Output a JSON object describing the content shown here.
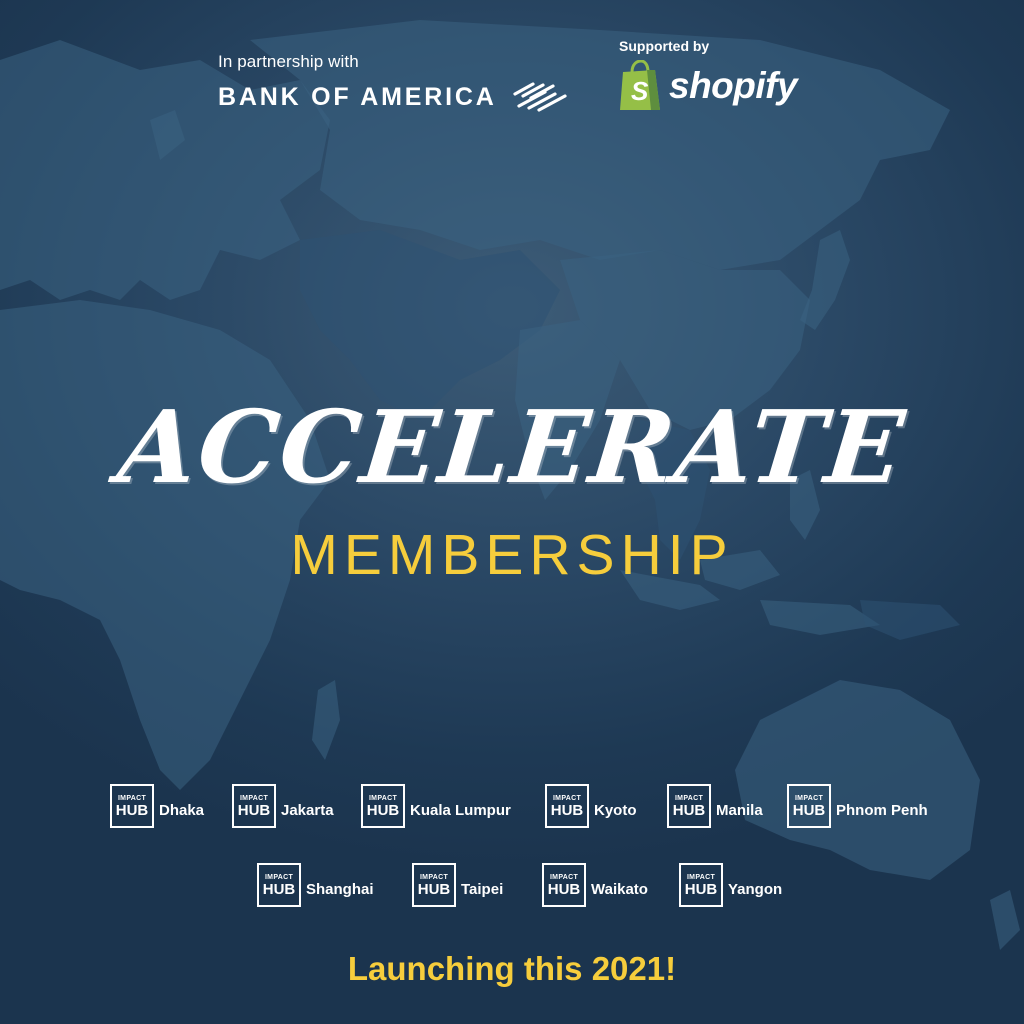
{
  "partner": {
    "caption": "In partnership with",
    "name": "BANK OF AMERICA"
  },
  "sponsor": {
    "caption": "Supported by",
    "name": "shopify"
  },
  "headline": "ACCELERATE",
  "subheadline": "MEMBERSHIP",
  "hub_logo": {
    "top": "IMPACT",
    "bottom": "HUB"
  },
  "hubs_row1": [
    "Dhaka",
    "Jakarta",
    "Kuala Lumpur",
    "Kyoto",
    "Manila",
    "Phnom Penh"
  ],
  "hubs_row2": [
    "Shanghai",
    "Taipei",
    "Waikato",
    "Yangon"
  ],
  "launch_text": "Launching this 2021!",
  "colors": {
    "background": "#1e3a55",
    "accent_yellow": "#f6cd3c",
    "text": "#ffffff",
    "shopify_green": "#95bf47",
    "boa_red": "#e31837"
  }
}
